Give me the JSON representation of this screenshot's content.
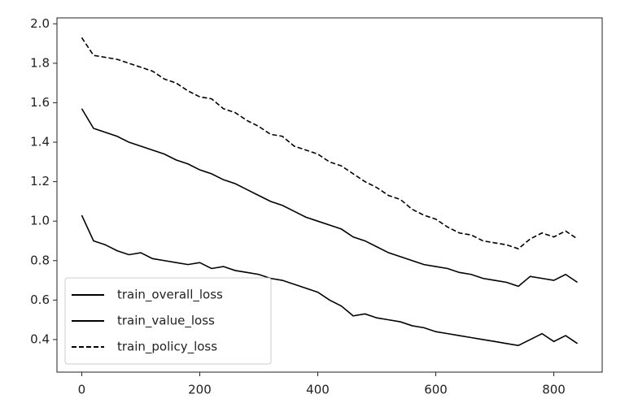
{
  "chart_data": {
    "type": "line",
    "x": [
      0,
      20,
      40,
      60,
      80,
      100,
      120,
      140,
      160,
      180,
      200,
      220,
      240,
      260,
      280,
      300,
      320,
      340,
      360,
      380,
      400,
      420,
      440,
      460,
      480,
      500,
      520,
      540,
      560,
      580,
      600,
      620,
      640,
      660,
      680,
      700,
      720,
      740,
      760,
      780,
      800,
      820,
      840
    ],
    "series": [
      {
        "name": "train_overall_loss",
        "color": "#000000",
        "linestyle": "solid",
        "values": [
          1.57,
          1.47,
          1.45,
          1.43,
          1.4,
          1.38,
          1.36,
          1.34,
          1.31,
          1.29,
          1.26,
          1.24,
          1.21,
          1.19,
          1.16,
          1.13,
          1.1,
          1.08,
          1.05,
          1.02,
          1.0,
          0.98,
          0.96,
          0.92,
          0.9,
          0.87,
          0.84,
          0.82,
          0.8,
          0.78,
          0.77,
          0.76,
          0.74,
          0.73,
          0.71,
          0.7,
          0.69,
          0.67,
          0.72,
          0.71,
          0.7,
          0.73,
          0.69
        ]
      },
      {
        "name": "train_value_loss",
        "color": "#000000",
        "linestyle": "solid",
        "values": [
          1.03,
          0.9,
          0.88,
          0.85,
          0.83,
          0.84,
          0.81,
          0.8,
          0.79,
          0.78,
          0.79,
          0.76,
          0.77,
          0.75,
          0.74,
          0.73,
          0.71,
          0.7,
          0.68,
          0.66,
          0.64,
          0.6,
          0.57,
          0.52,
          0.53,
          0.51,
          0.5,
          0.49,
          0.47,
          0.46,
          0.44,
          0.43,
          0.42,
          0.41,
          0.4,
          0.39,
          0.38,
          0.37,
          0.4,
          0.43,
          0.39,
          0.42,
          0.38
        ]
      },
      {
        "name": "train_policy_loss",
        "color": "#000000",
        "linestyle": "dashed",
        "values": [
          1.93,
          1.84,
          1.83,
          1.82,
          1.8,
          1.78,
          1.76,
          1.72,
          1.7,
          1.66,
          1.63,
          1.62,
          1.57,
          1.55,
          1.51,
          1.48,
          1.44,
          1.43,
          1.38,
          1.36,
          1.34,
          1.3,
          1.28,
          1.24,
          1.2,
          1.17,
          1.13,
          1.11,
          1.06,
          1.03,
          1.01,
          0.97,
          0.94,
          0.93,
          0.9,
          0.89,
          0.88,
          0.86,
          0.91,
          0.94,
          0.92,
          0.95,
          0.91
        ]
      }
    ],
    "xlim": [
      -42,
      882
    ],
    "xticks": [
      0,
      200,
      400,
      600,
      800
    ],
    "ylim": [
      0.235,
      2.03
    ],
    "yticks": [
      0.4,
      0.6,
      0.8,
      {
        "value": 1,
        "label": "1.0"
      },
      1.2,
      1.4,
      1.6,
      1.8,
      {
        "value": 2,
        "label": "2.0"
      }
    ],
    "grid": false,
    "legend": "lower left"
  }
}
